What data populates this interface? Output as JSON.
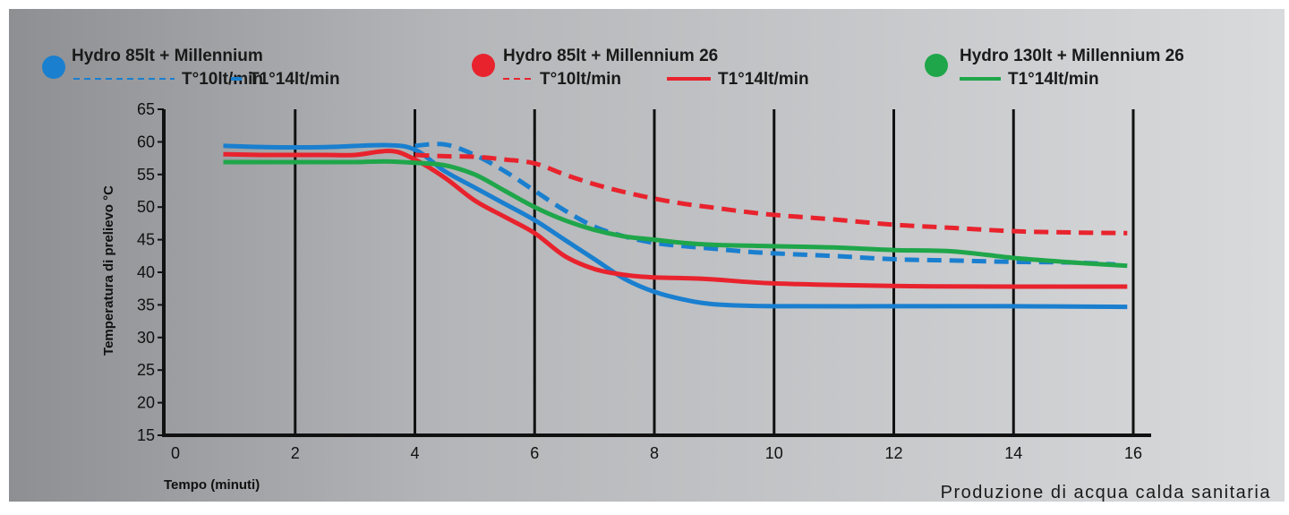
{
  "chart_data": {
    "type": "line",
    "xlabel": "Tempo (minuti)",
    "ylabel": "Temperatura di prelievo °C",
    "caption": "Produzione di acqua calda sanitaria",
    "xlim": [
      0,
      16
    ],
    "ylim": [
      15,
      65
    ],
    "xticks": [
      0,
      2,
      4,
      6,
      8,
      10,
      12,
      14,
      16
    ],
    "yticks": [
      15,
      20,
      25,
      30,
      35,
      40,
      45,
      50,
      55,
      60,
      65
    ],
    "vertical_grid": true,
    "legend": [
      {
        "group": "Hydro 85lt + Millennium",
        "color": "#1a7fcf",
        "entries": [
          {
            "label": "T°10lt/min",
            "style": "dashed"
          },
          {
            "label": "T1°14lt/min",
            "style": "solid"
          }
        ]
      },
      {
        "group": "Hydro 85lt + Millennium 26",
        "color": "#e8232d",
        "entries": [
          {
            "label": "T°10lt/min",
            "style": "dashed"
          },
          {
            "label": "T1°14lt/min",
            "style": "solid"
          }
        ]
      },
      {
        "group": "Hydro 130lt + Millennium 26",
        "color": "#1fa64a",
        "entries": [
          {
            "label": "T1°14lt/min",
            "style": "solid"
          }
        ]
      }
    ],
    "series": [
      {
        "color": "#1a7fcf",
        "style": "dashed",
        "points": [
          [
            4.0,
            59.4
          ],
          [
            4.5,
            59.6
          ],
          [
            5.0,
            58.0
          ],
          [
            5.5,
            55.5
          ],
          [
            6.0,
            52.5
          ],
          [
            6.5,
            49.5
          ],
          [
            7.0,
            47.0
          ],
          [
            7.5,
            45.5
          ],
          [
            8.0,
            44.5
          ],
          [
            8.5,
            44.0
          ],
          [
            9.0,
            43.6
          ],
          [
            9.5,
            43.2
          ],
          [
            10.0,
            42.9
          ],
          [
            11.0,
            42.5
          ],
          [
            12.0,
            42.0
          ],
          [
            13.0,
            41.8
          ],
          [
            14.0,
            41.6
          ],
          [
            15.0,
            41.5
          ],
          [
            15.7,
            41.2
          ]
        ]
      },
      {
        "color": "#1a7fcf",
        "style": "solid",
        "points": [
          [
            0.8,
            59.4
          ],
          [
            1.5,
            59.2
          ],
          [
            2.5,
            59.2
          ],
          [
            3.5,
            59.5
          ],
          [
            4.0,
            58.8
          ],
          [
            4.5,
            55.5
          ],
          [
            5.0,
            53.0
          ],
          [
            5.5,
            50.5
          ],
          [
            6.0,
            48.0
          ],
          [
            6.5,
            45.0
          ],
          [
            7.0,
            42.0
          ],
          [
            7.5,
            39.0
          ],
          [
            8.0,
            37.0
          ],
          [
            8.5,
            35.8
          ],
          [
            9.0,
            35.1
          ],
          [
            10.0,
            34.8
          ],
          [
            12.0,
            34.8
          ],
          [
            14.0,
            34.8
          ],
          [
            15.9,
            34.7
          ]
        ]
      },
      {
        "color": "#e8232d",
        "style": "dashed",
        "points": [
          [
            4.0,
            58.0
          ],
          [
            4.5,
            57.8
          ],
          [
            5.0,
            57.7
          ],
          [
            5.5,
            57.3
          ],
          [
            6.0,
            56.7
          ],
          [
            6.5,
            55.0
          ],
          [
            7.0,
            53.5
          ],
          [
            7.5,
            52.3
          ],
          [
            8.0,
            51.3
          ],
          [
            8.5,
            50.5
          ],
          [
            9.0,
            49.9
          ],
          [
            9.5,
            49.3
          ],
          [
            10.0,
            48.8
          ],
          [
            11.0,
            48.1
          ],
          [
            12.0,
            47.3
          ],
          [
            13.0,
            46.8
          ],
          [
            14.0,
            46.3
          ],
          [
            15.0,
            46.1
          ],
          [
            15.9,
            46.0
          ]
        ]
      },
      {
        "color": "#e8232d",
        "style": "solid",
        "points": [
          [
            0.8,
            58.1
          ],
          [
            1.5,
            58.0
          ],
          [
            2.5,
            58.0
          ],
          [
            3.0,
            58.0
          ],
          [
            3.6,
            58.6
          ],
          [
            4.0,
            57.3
          ],
          [
            4.5,
            54.5
          ],
          [
            5.0,
            51.0
          ],
          [
            5.5,
            48.5
          ],
          [
            6.0,
            46.0
          ],
          [
            6.5,
            42.5
          ],
          [
            7.0,
            40.5
          ],
          [
            7.5,
            39.6
          ],
          [
            8.0,
            39.2
          ],
          [
            8.5,
            39.1
          ],
          [
            9.0,
            38.9
          ],
          [
            10.0,
            38.3
          ],
          [
            12.0,
            37.9
          ],
          [
            14.0,
            37.8
          ],
          [
            15.9,
            37.8
          ]
        ]
      },
      {
        "color": "#1fa64a",
        "style": "solid",
        "points": [
          [
            0.8,
            56.9
          ],
          [
            2.0,
            56.9
          ],
          [
            3.0,
            56.9
          ],
          [
            3.5,
            57.0
          ],
          [
            4.0,
            56.8
          ],
          [
            4.5,
            56.4
          ],
          [
            5.0,
            55.0
          ],
          [
            5.5,
            52.5
          ],
          [
            6.0,
            50.0
          ],
          [
            6.5,
            48.0
          ],
          [
            7.0,
            46.5
          ],
          [
            7.5,
            45.5
          ],
          [
            8.0,
            45.0
          ],
          [
            8.5,
            44.5
          ],
          [
            9.0,
            44.2
          ],
          [
            10.0,
            44.0
          ],
          [
            11.0,
            43.8
          ],
          [
            12.0,
            43.4
          ],
          [
            13.0,
            43.2
          ],
          [
            14.0,
            42.2
          ],
          [
            15.0,
            41.5
          ],
          [
            15.9,
            41.0
          ]
        ]
      }
    ]
  }
}
